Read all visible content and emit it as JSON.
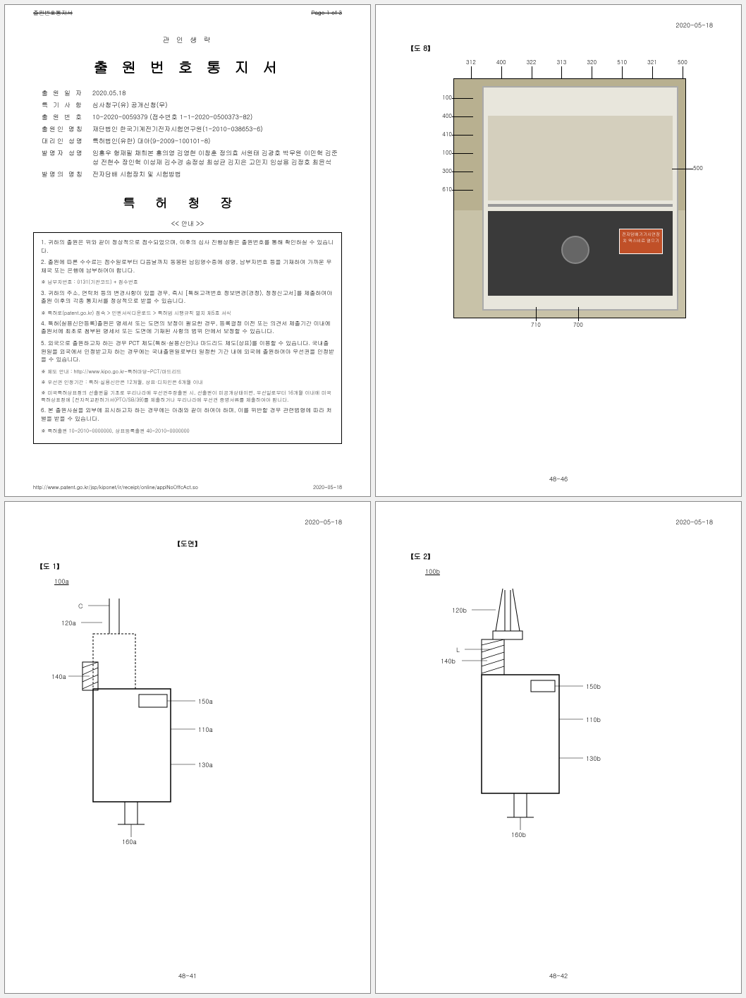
{
  "meta": {
    "date": "2020-05-18"
  },
  "page1": {
    "header_top_strike": "출원번호통지서",
    "header_page": "Page 1 of 3",
    "seal_line": "관 인 생 략",
    "title": "출 원 번 호 통 지 서",
    "fields": [
      {
        "label": "출 원 일 자",
        "value": "2020.05.18"
      },
      {
        "label": "특 기 사 항",
        "value": "심사청구(유) 공개신청(무)"
      },
      {
        "label": "출 원 번 호",
        "value": "10-2020-0059379 (접수번호 1-1-2020-0500373-82)"
      },
      {
        "label": "출원인 명칭",
        "value": "재단법인 한국기계전기전자시험연구원(1-2010-038653-6)"
      },
      {
        "label": "대리인 성명",
        "value": "특허법인(유한) 대아(9-2009-100101-8)"
      },
      {
        "label": "발명자 성명",
        "value": "임홍우 형재필 채희본 홍의영 김영현 이창훈 정의효 서원태 김광호 박무원 이민혁 김준성 전현수 장인혁 이성재 김수경 송정성 최성균 김지은 고민지 임성용 김정호 최윤석"
      },
      {
        "label": "발명의 명칭",
        "value": "전자담배 시험장치 및 시험방법"
      }
    ],
    "authority": "특허청장",
    "guide_head": "<< 안내 >>",
    "guide": [
      "1. 귀하의 출원은 위와 같이 정상적으로 접수되었으며, 이후의 심사 진행상황은 출원번호를 통해 확인하실 수 있습니다.",
      "2. 출원에 따른 수수료는 접수일로부터 다음날까지 동봉된 납입영수증에 성명, 납부자번호 등을 기재하여 가까운 우체국 또는 은행에 납부하여야 합니다.",
      "※ 납부자번호 : 0131(기관코드) + 접수번호",
      "3. 귀하의 주소, 연락처 등의 변경사항이 있을 경우, 즉시 [특허고객번호 정보변경(경정), 정정신고서]를 제출하여야 출원 이후의 각종 통지서를 정상적으로 받을 수 있습니다.",
      "※ 특허로(patent.go.kr) 접속 > 민원서식다운로드 > 특허법 시행규칙 별지 제5호 서식",
      "4. 특허(실용신안등록)출원은 명세서 또는 도면의 보정이 필요한 경우, 등록결정 이전 또는 의견서 제출기간 이내에 출원서에 최초로 첨부된 명세서 또는 도면에 기재된 사항의 범위 안에서 보정할 수 있습니다.",
      "5. 외국으로 출원하고자 하는 경우 PCT 제도(특허·실용신안)나 마드리드 제도(상표)를 이용할 수 있습니다. 국내출원일을 외국에서 인정받고자 하는 경우에는 국내출원일로부터 일정한 기간 내에 외국에 출원하여야 우선권을 인정받을 수 있습니다.",
      "※ 제도 안내 : http://www.kipo.go.kr-특허마당-PCT/마드리드",
      "※ 우선권 인정기간 : 특허·실용신안은 12개월, 상표·디자인은 6개월 이내",
      "※ 미국특허상표청의 선출원을 기초로 우리나라에 우선권주장출원 시, 선출원이 미공개상태이면, 우선일로부터 16개월 이내에 미국특허상표청에 [전자적교환허가서(PTO/SB/39)를 제출하거나 우리나라에 우선권 증명서류를 제출하여야 합니다.",
      "6. 본 출원사실을 외부에 표시하고자 하는 경우에는 아래와 같이 하여야 하며, 이를 위반할 경우 관련법령에 따라 처벌을 받을 수 있습니다.",
      "※ 특허출원 10-2010-0000000, 상표등록출원 40-2010-0000000"
    ],
    "footer_url": "http://www.patent.go.kr/jsp/kiponet/ir/receipt/online/applNoOffcAct.so",
    "footer_date": "2020-05-18"
  },
  "page2": {
    "fig_label": "【도 8】",
    "top_nums": [
      "312",
      "400",
      "322",
      "313",
      "320",
      "510",
      "321",
      "500"
    ],
    "left_nums": [
      "100",
      "400",
      "410",
      "100",
      "300",
      "610"
    ],
    "right_nums": [
      "500"
    ],
    "bottom_nums": [
      "710",
      "700"
    ],
    "panel_text": "전자담배기기시연장치 액스비료 열으기",
    "footer_pg": "48-46"
  },
  "page3": {
    "section": "【도면】",
    "fig_label": "【도 1】",
    "ref_main": "100a",
    "labels": {
      "C": "C",
      "120a": "120a",
      "140a": "140a",
      "150a": "150a",
      "110a": "110a",
      "130a": "130a",
      "160a": "160a"
    },
    "footer_pg": "48-41"
  },
  "page4": {
    "fig_label": "【도 2】",
    "ref_main": "100b",
    "labels": {
      "120b": "120b",
      "L": "L",
      "140b": "140b",
      "150b": "150b",
      "110b": "110b",
      "130b": "130b",
      "160b": "160b"
    },
    "footer_pg": "48-42"
  }
}
